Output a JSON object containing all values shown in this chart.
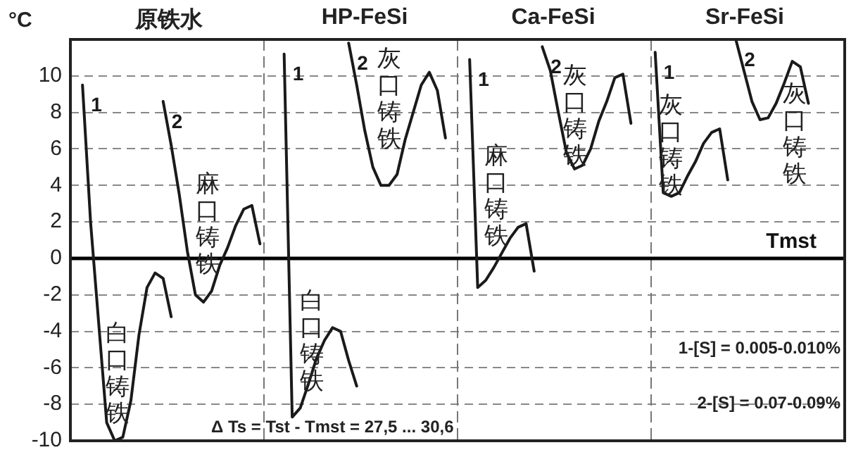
{
  "chart_data": {
    "type": "line",
    "ylabel": "°C",
    "categories": [
      null,
      null,
      null,
      null,
      null,
      null,
      null,
      null,
      null,
      null,
      null,
      null,
      null,
      null,
      null,
      null,
      null,
      null,
      null,
      null,
      null,
      null,
      null,
      null,
      null,
      null,
      null,
      null,
      null,
      null,
      null,
      null,
      null,
      null,
      null,
      null,
      null,
      null,
      null,
      null,
      null,
      null,
      null,
      null,
      null,
      null,
      null,
      null,
      null,
      null,
      null,
      null,
      null,
      null,
      null,
      null,
      null,
      null,
      null,
      null,
      null,
      null,
      null,
      null,
      null,
      null,
      null,
      null,
      null,
      null,
      null,
      null,
      null,
      null,
      null,
      null,
      null,
      null,
      null,
      null,
      null,
      null,
      null,
      null,
      null,
      null,
      null,
      null,
      null,
      null,
      null,
      null,
      null,
      null,
      null,
      null
    ],
    "series": [
      {
        "name": "1",
        "color": "#1a1a1a",
        "values": [
          null,
          9.5,
          2,
          -3.5,
          -9,
          -10,
          -9.8,
          -7.8,
          -4.2,
          -1.6,
          -0.8,
          -1.1,
          -3.2,
          null,
          null,
          null,
          null,
          null,
          null,
          null,
          null,
          null,
          null,
          null,
          null,
          null,
          null,
          null,
          null,
          null,
          null,
          null,
          null,
          null,
          null,
          null,
          null,
          null,
          null,
          null,
          null,
          null,
          null,
          null,
          null,
          null,
          null,
          null,
          null,
          null,
          null,
          null,
          null,
          null,
          null,
          null,
          null,
          null,
          null,
          null,
          null,
          null,
          null,
          null,
          null,
          null,
          null,
          null,
          null,
          null,
          null,
          null,
          null,
          null,
          null,
          null,
          null,
          null,
          null,
          null,
          null,
          null,
          null,
          null,
          null,
          null,
          null,
          null,
          null,
          null,
          null,
          null,
          null,
          null,
          null,
          null
        ]
      },
      {
        "name": "2",
        "color": "#1a1a1a",
        "values": [
          null,
          null,
          null,
          null,
          null,
          null,
          null,
          null,
          null,
          null,
          null,
          8.6,
          6.2,
          3.5,
          0.4,
          -2,
          -2.4,
          -1.8,
          -0.4,
          0.6,
          1.8,
          2.7,
          2.9,
          0.8,
          null,
          null,
          null,
          null,
          null,
          null,
          null,
          null,
          null,
          null,
          null,
          null,
          null,
          null,
          null,
          null,
          null,
          null,
          null,
          null,
          null,
          null,
          null,
          null,
          null,
          null,
          null,
          null,
          null,
          null,
          null,
          null,
          null,
          null,
          null,
          null,
          null,
          null,
          null,
          null,
          null,
          null,
          null,
          null,
          null,
          null,
          null,
          null,
          null,
          null,
          null,
          null,
          null,
          null,
          null,
          null,
          null,
          null,
          null,
          null,
          null,
          null,
          null,
          null,
          null,
          null,
          null,
          null,
          null,
          null,
          null,
          null
        ]
      },
      {
        "name": "1",
        "color": "#1a1a1a",
        "values": [
          null,
          null,
          null,
          null,
          null,
          null,
          null,
          null,
          null,
          null,
          null,
          null,
          null,
          null,
          null,
          null,
          null,
          null,
          null,
          null,
          null,
          null,
          null,
          null,
          null,
          null,
          11.2,
          -8.7,
          -8.2,
          -6.9,
          -5.5,
          -4.5,
          -3.8,
          -4,
          -5.6,
          -7,
          null,
          null,
          null,
          null,
          null,
          null,
          null,
          null,
          null,
          null,
          null,
          null,
          null,
          null,
          null,
          null,
          null,
          null,
          null,
          null,
          null,
          null,
          null,
          null,
          null,
          null,
          null,
          null,
          null,
          null,
          null,
          null,
          null,
          null,
          null,
          null,
          null,
          null,
          null,
          null,
          null,
          null,
          null,
          null,
          null,
          null,
          null,
          null,
          null,
          null,
          null,
          null,
          null,
          null,
          null,
          null,
          null,
          null,
          null,
          null
        ]
      },
      {
        "name": "2",
        "color": "#1a1a1a",
        "values": [
          null,
          null,
          null,
          null,
          null,
          null,
          null,
          null,
          null,
          null,
          null,
          null,
          null,
          null,
          null,
          null,
          null,
          null,
          null,
          null,
          null,
          null,
          null,
          null,
          null,
          null,
          null,
          null,
          null,
          null,
          null,
          null,
          null,
          null,
          11.8,
          9.5,
          7.0,
          5.0,
          4.0,
          4.0,
          4.6,
          6.5,
          8.0,
          9.5,
          10.2,
          9.2,
          6.6,
          null,
          null,
          null,
          null,
          null,
          null,
          null,
          null,
          null,
          null,
          null,
          null,
          null,
          null,
          null,
          null,
          null,
          null,
          null,
          null,
          null,
          null,
          null,
          null,
          null,
          null,
          null,
          null,
          null,
          null,
          null,
          null,
          null,
          null,
          null,
          null,
          null,
          null,
          null,
          null,
          null,
          null,
          null,
          null,
          null,
          null,
          null,
          null,
          null
        ]
      },
      {
        "name": "1",
        "color": "#1a1a1a",
        "values": [
          null,
          null,
          null,
          null,
          null,
          null,
          null,
          null,
          null,
          null,
          null,
          null,
          null,
          null,
          null,
          null,
          null,
          null,
          null,
          null,
          null,
          null,
          null,
          null,
          null,
          null,
          null,
          null,
          null,
          null,
          null,
          null,
          null,
          null,
          null,
          null,
          null,
          null,
          null,
          null,
          null,
          null,
          null,
          null,
          null,
          null,
          null,
          null,
          null,
          10.9,
          -1.6,
          -1.2,
          -0.5,
          0.3,
          1.1,
          1.7,
          1.9,
          -0.7,
          null,
          null,
          null,
          null,
          null,
          null,
          null,
          null,
          null,
          null,
          null,
          null,
          null,
          null,
          null,
          null,
          null,
          null,
          null,
          null,
          null,
          null,
          null,
          null,
          null,
          null,
          null,
          null,
          null,
          null,
          null,
          null,
          null,
          null,
          null,
          null,
          null,
          null
        ]
      },
      {
        "name": "2",
        "color": "#1a1a1a",
        "values": [
          null,
          null,
          null,
          null,
          null,
          null,
          null,
          null,
          null,
          null,
          null,
          null,
          null,
          null,
          null,
          null,
          null,
          null,
          null,
          null,
          null,
          null,
          null,
          null,
          null,
          null,
          null,
          null,
          null,
          null,
          null,
          null,
          null,
          null,
          null,
          null,
          null,
          null,
          null,
          null,
          null,
          null,
          null,
          null,
          null,
          null,
          null,
          null,
          null,
          null,
          null,
          null,
          null,
          null,
          null,
          null,
          null,
          null,
          11.6,
          10.3,
          8.0,
          5.8,
          4.9,
          5.1,
          6.0,
          7.5,
          8.6,
          9.9,
          10.1,
          7.4,
          null,
          null,
          null,
          null,
          null,
          null,
          null,
          null,
          null,
          null,
          null,
          null,
          null,
          null,
          null,
          null,
          null,
          null,
          null,
          null,
          null,
          null,
          null,
          null,
          null,
          null
        ]
      },
      {
        "name": "1",
        "color": "#1a1a1a",
        "values": [
          null,
          null,
          null,
          null,
          null,
          null,
          null,
          null,
          null,
          null,
          null,
          null,
          null,
          null,
          null,
          null,
          null,
          null,
          null,
          null,
          null,
          null,
          null,
          null,
          null,
          null,
          null,
          null,
          null,
          null,
          null,
          null,
          null,
          null,
          null,
          null,
          null,
          null,
          null,
          null,
          null,
          null,
          null,
          null,
          null,
          null,
          null,
          null,
          null,
          null,
          null,
          null,
          null,
          null,
          null,
          null,
          null,
          null,
          null,
          null,
          null,
          null,
          null,
          null,
          null,
          null,
          null,
          null,
          null,
          null,
          null,
          null,
          11.3,
          3.6,
          3.4,
          3.6,
          4.5,
          5.3,
          6.3,
          6.9,
          7.1,
          4.3,
          null,
          null,
          null,
          null,
          null,
          null,
          null,
          null,
          null,
          null,
          null,
          null,
          null,
          null
        ]
      },
      {
        "name": "2",
        "color": "#1a1a1a",
        "values": [
          null,
          null,
          null,
          null,
          null,
          null,
          null,
          null,
          null,
          null,
          null,
          null,
          null,
          null,
          null,
          null,
          null,
          null,
          null,
          null,
          null,
          null,
          null,
          null,
          null,
          null,
          null,
          null,
          null,
          null,
          null,
          null,
          null,
          null,
          null,
          null,
          null,
          null,
          null,
          null,
          null,
          null,
          null,
          null,
          null,
          null,
          null,
          null,
          null,
          null,
          null,
          null,
          null,
          null,
          null,
          null,
          null,
          null,
          null,
          null,
          null,
          null,
          null,
          null,
          null,
          null,
          null,
          null,
          null,
          null,
          null,
          null,
          null,
          null,
          null,
          null,
          null,
          null,
          null,
          null,
          null,
          null,
          12,
          10.3,
          8.6,
          7.6,
          7.7,
          8.5,
          9.6,
          10.8,
          10.5,
          8.5,
          null,
          null,
          null,
          null
        ]
      }
    ],
    "ylim": [
      -10,
      12
    ],
    "yticks": [
      -10,
      -8,
      -6,
      -4,
      -2,
      0,
      2,
      4,
      6,
      8,
      10
    ],
    "grid": "y",
    "marker": "none",
    "tick_labels": "y",
    "ref_lines": [
      {
        "axis": "y",
        "value": 0,
        "label": "Tmst",
        "color": "#000000"
      }
    ],
    "annotations": [
      "原铁水",
      "HP-FeSi",
      "Ca-FeSi",
      "Sr-FeSi",
      "白口铸铁",
      "麻口铸铁",
      "白口铸铁",
      "灰口铸铁",
      "Δ Ts = Tst - Tmst = 27,5 ... 30,6",
      "麻口铸铁",
      "灰口铸铁",
      "灰口铸铁",
      "灰口铸铁",
      "1-[S] = 0.005-0.010%",
      "2-[S] = 0.07-0.09%"
    ]
  }
}
